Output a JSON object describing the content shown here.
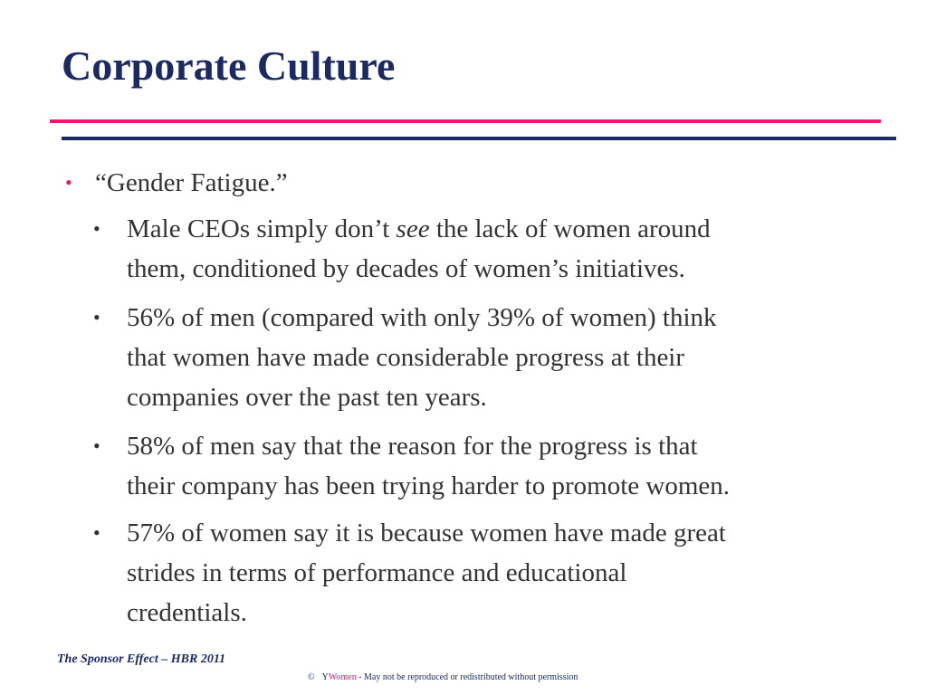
{
  "slide": {
    "title": "Corporate Culture",
    "colors": {
      "title": "#1b2a63",
      "accent_pink": "#e6196e",
      "rule_navy": "#1b2a63",
      "body": "#333333"
    },
    "bullet_level1": {
      "text": "“Gender Fatigue.”"
    },
    "bullets_level2": [
      {
        "line1_before": "Male CEOs simply don’t ",
        "line1_italic": "see",
        "line1_after": " the lack of women around",
        "line2": "them, conditioned by decades of women’s initiatives."
      },
      {
        "line1": "56% of men (compared with only 39% of women) think",
        "line2": "that women have made considerable progress at their",
        "line3": "companies over the past ten years."
      },
      {
        "line1": "58% of men say that the reason for the progress is that",
        "line2": "their company has been trying harder to promote women."
      },
      {
        "line1": "57% of women say it is because women have made great",
        "line2": "strides in terms of performance and educational",
        "line3": "credentials."
      }
    ],
    "bullet_glyph": "•",
    "source": "The Sponsor Effect – HBR 2011",
    "footer": {
      "copyright": "©",
      "brand_y": "Y",
      "brand_women": "Women",
      "notice": " - May not be reproduced or redistributed without permission"
    }
  }
}
